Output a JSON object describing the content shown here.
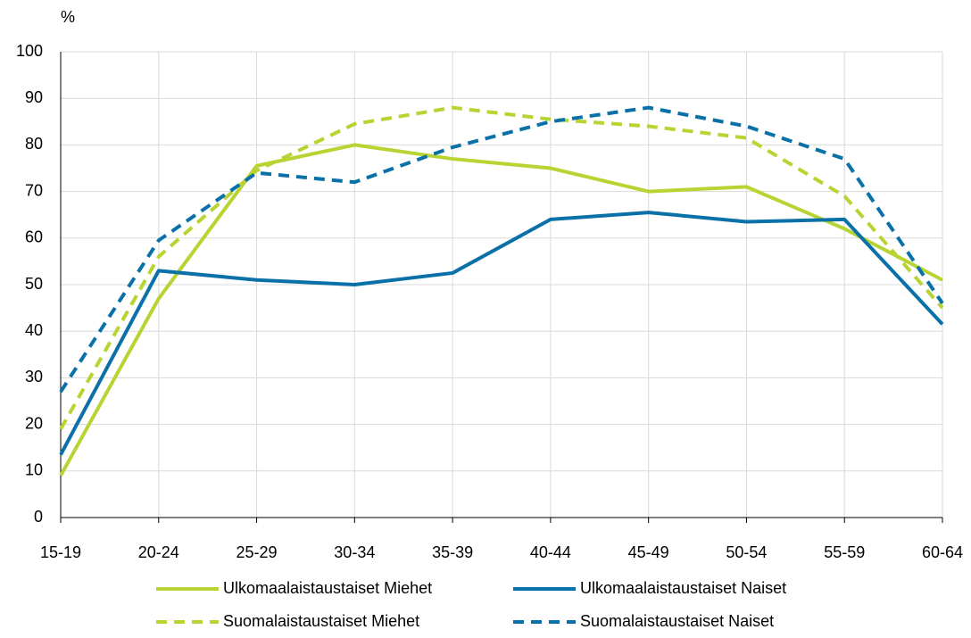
{
  "chart_data": {
    "type": "line",
    "y_label": "%",
    "categories": [
      "15-19",
      "20-24",
      "25-29",
      "30-34",
      "35-39",
      "40-44",
      "45-49",
      "50-54",
      "55-59",
      "60-64"
    ],
    "series": [
      {
        "name": "Ulkomaalaistaustaiset Miehet",
        "color": "#b8d433",
        "dash": false,
        "values": [
          9,
          47,
          75.5,
          80,
          77,
          75,
          70,
          71,
          62,
          51
        ]
      },
      {
        "name": "Ulkomaalaistaustaiset Naiset",
        "color": "#0a70a8",
        "dash": false,
        "values": [
          13.5,
          53,
          51,
          50,
          52.5,
          64,
          65.5,
          63.5,
          64,
          41.5
        ]
      },
      {
        "name": "Suomalaistaustaiset Miehet",
        "color": "#b8d433",
        "dash": true,
        "values": [
          19,
          56,
          74.5,
          84.5,
          88,
          85.5,
          84,
          81.5,
          69,
          45
        ]
      },
      {
        "name": "Suomalaistaustaiset Naiset",
        "color": "#0a70a8",
        "dash": true,
        "values": [
          27,
          59.5,
          74,
          72,
          79.5,
          85,
          88,
          84,
          77,
          46
        ]
      }
    ],
    "ylim": [
      0,
      100
    ],
    "yticks": [
      0,
      10,
      20,
      30,
      40,
      50,
      60,
      70,
      80,
      90,
      100
    ],
    "grid": true
  }
}
